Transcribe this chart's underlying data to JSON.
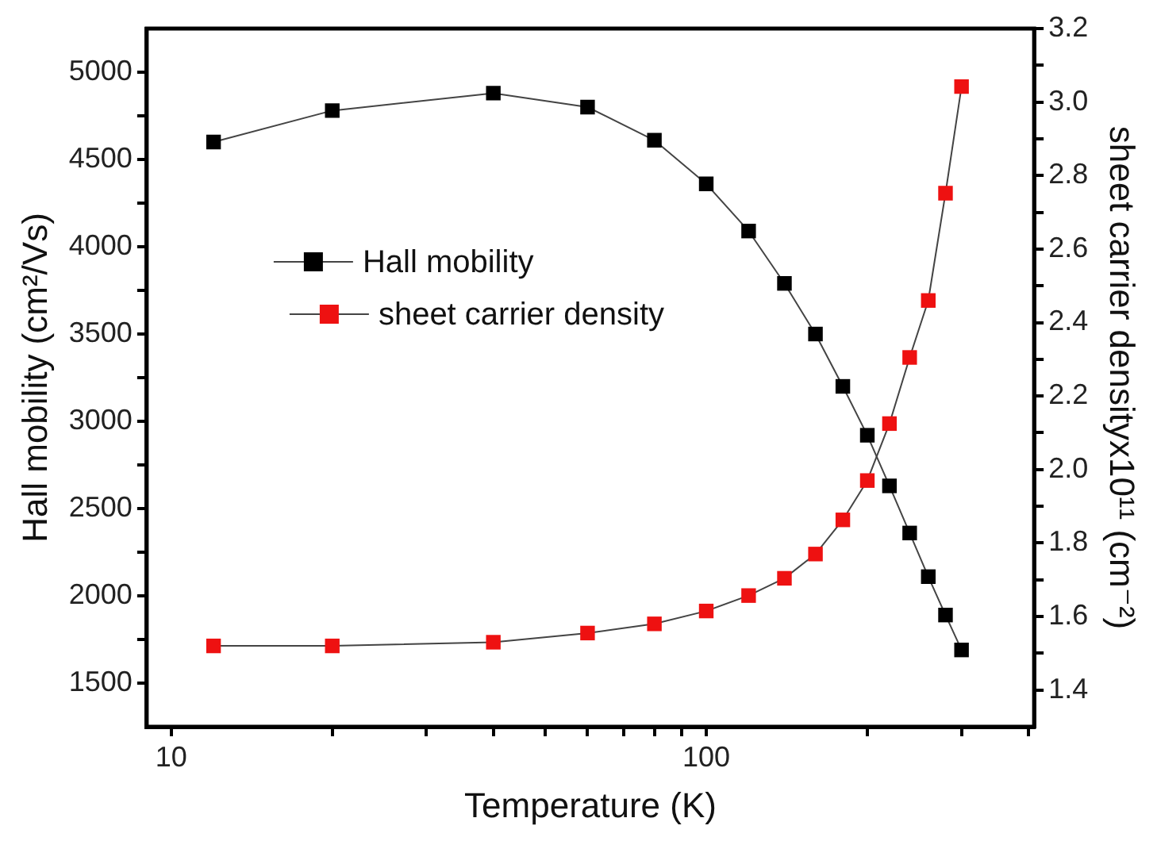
{
  "chart_data": {
    "type": "line",
    "xlabel": "Temperature (K)",
    "ylabel": "Hall mobility (cm²/Vs)",
    "y2label": "sheet carrier densityx10¹¹ (cm⁻²)",
    "x": [
      12,
      20,
      40,
      60,
      80,
      100,
      120,
      140,
      160,
      180,
      200,
      220,
      240,
      260,
      280,
      300
    ],
    "series": [
      {
        "name": "Hall mobility",
        "color": "#000000",
        "values": [
          4600,
          4780,
          4880,
          4800,
          4610,
          4360,
          4090,
          3790,
          3500,
          3200,
          2920,
          2630,
          2360,
          2110,
          1890,
          1690
        ]
      },
      {
        "name": "sheet carrier density",
        "color": "#ee1111",
        "axis": "y2",
        "values": [
          1.52,
          1.52,
          1.53,
          1.555,
          1.58,
          1.615,
          1.657,
          1.704,
          1.77,
          1.863,
          1.97,
          2.125,
          2.305,
          2.46,
          2.752,
          3.042
        ]
      }
    ],
    "log": "x",
    "xlim": [
      9,
      410
    ],
    "xticks": [
      10,
      {
        "value": 20,
        "label": null
      },
      {
        "value": 30,
        "label": null
      },
      {
        "value": 40,
        "label": null
      },
      {
        "value": 50,
        "label": null
      },
      {
        "value": 60,
        "label": null
      },
      {
        "value": 70,
        "label": null
      },
      {
        "value": 80,
        "label": null
      },
      {
        "value": 90,
        "label": null
      },
      100,
      {
        "value": 200,
        "label": null
      },
      {
        "value": 300,
        "label": null
      },
      {
        "value": 400,
        "label": null
      }
    ],
    "ylim": [
      1250,
      5250
    ],
    "yticks": [
      1500,
      {
        "value": 1750,
        "label": null
      },
      2000,
      {
        "value": 2250,
        "label": null
      },
      2500,
      {
        "value": 2750,
        "label": null
      },
      3000,
      {
        "value": 3250,
        "label": null
      },
      3500,
      {
        "value": 3750,
        "label": null
      },
      4000,
      {
        "value": 4250,
        "label": null
      },
      4500,
      {
        "value": 4750,
        "label": null
      },
      5000
    ],
    "y2lim": [
      1.3,
      3.2
    ],
    "y2ticks": [
      1.4,
      {
        "value": 1.5,
        "label": null
      },
      1.6,
      {
        "value": 1.7,
        "label": null
      },
      1.8,
      {
        "value": 1.9,
        "label": null
      },
      {
        "value": 2,
        "label": "2.0"
      },
      {
        "value": 2.1,
        "label": null
      },
      2.2,
      {
        "value": 2.3,
        "label": null
      },
      2.4,
      {
        "value": 2.5,
        "label": null
      },
      2.6,
      {
        "value": 2.7,
        "label": null
      },
      2.8,
      {
        "value": 2.9,
        "label": null
      },
      {
        "value": 3,
        "label": "3.0"
      },
      {
        "value": 3.1,
        "label": null
      },
      3.2
    ],
    "grid": false,
    "legend": "center left",
    "marker": "square",
    "line_style": "solid"
  }
}
